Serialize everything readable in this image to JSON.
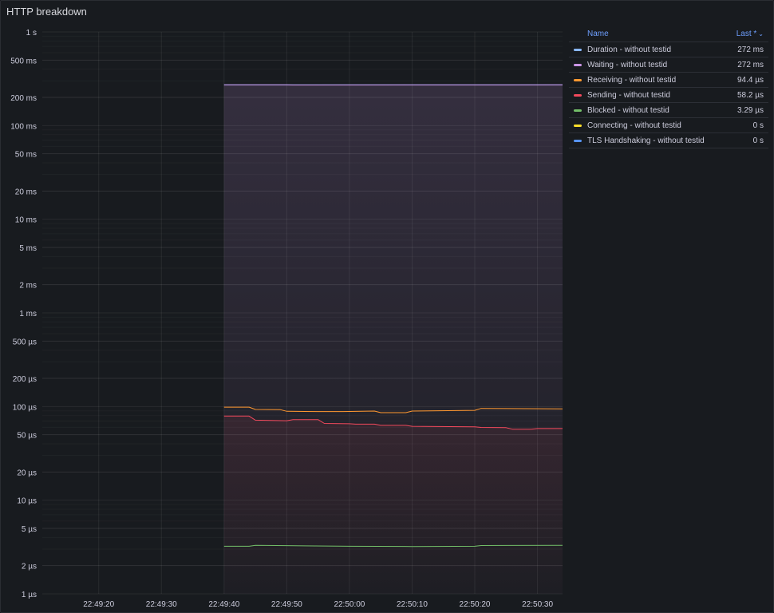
{
  "panel": {
    "title": "HTTP breakdown"
  },
  "legend": {
    "name_header": "Name",
    "last_header": "Last *",
    "sort_icon": "chevron-down-icon",
    "items": [
      {
        "name": "Duration - without testid",
        "value": "272 ms",
        "color": "#8ab8ff"
      },
      {
        "name": "Waiting - without testid",
        "value": "272 ms",
        "color": "#ca95e5"
      },
      {
        "name": "Receiving - without testid",
        "value": "94.4 µs",
        "color": "#ff9830"
      },
      {
        "name": "Sending - without testid",
        "value": "58.2 µs",
        "color": "#f2495c"
      },
      {
        "name": "Blocked - without testid",
        "value": "3.29 µs",
        "color": "#73bf69"
      },
      {
        "name": "Connecting - without testid",
        "value": "0 s",
        "color": "#fade2a"
      },
      {
        "name": "TLS Handshaking - without testid",
        "value": "0 s",
        "color": "#5794f2"
      }
    ]
  },
  "chart_data": {
    "type": "line",
    "title": "HTTP breakdown",
    "y_scale": "log",
    "y_unit": "seconds",
    "ylim": [
      1e-06,
      1
    ],
    "y_ticks": [
      {
        "value": 1,
        "label": "1 s"
      },
      {
        "value": 0.5,
        "label": "500 ms"
      },
      {
        "value": 0.2,
        "label": "200 ms"
      },
      {
        "value": 0.1,
        "label": "100 ms"
      },
      {
        "value": 0.05,
        "label": "50 ms"
      },
      {
        "value": 0.02,
        "label": "20 ms"
      },
      {
        "value": 0.01,
        "label": "10 ms"
      },
      {
        "value": 0.005,
        "label": "5 ms"
      },
      {
        "value": 0.002,
        "label": "2 ms"
      },
      {
        "value": 0.001,
        "label": "1 ms"
      },
      {
        "value": 0.0005,
        "label": "500 µs"
      },
      {
        "value": 0.0002,
        "label": "200 µs"
      },
      {
        "value": 0.0001,
        "label": "100 µs"
      },
      {
        "value": 5e-05,
        "label": "50 µs"
      },
      {
        "value": 2e-05,
        "label": "20 µs"
      },
      {
        "value": 1e-05,
        "label": "10 µs"
      },
      {
        "value": 5e-06,
        "label": "5 µs"
      },
      {
        "value": 2e-06,
        "label": "2 µs"
      },
      {
        "value": 1e-06,
        "label": "1 µs"
      }
    ],
    "xlim": [
      "22:49:11",
      "22:50:34"
    ],
    "x_ticks": [
      "22:49:20",
      "22:49:30",
      "22:49:40",
      "22:49:50",
      "22:50:00",
      "22:50:10",
      "22:50:20",
      "22:50:30"
    ],
    "series": [
      {
        "name": "Duration - without testid",
        "color": "#8ab8ff",
        "x": [
          "22:49:40",
          "22:50:34"
        ],
        "y": [
          0.272,
          0.272
        ]
      },
      {
        "name": "Waiting - without testid",
        "color": "#ca95e5",
        "x": [
          "22:49:40",
          "22:49:50",
          "22:49:51",
          "22:50:34"
        ],
        "y": [
          0.272,
          0.272,
          0.271,
          0.272
        ]
      },
      {
        "name": "Receiving - without testid",
        "color": "#ff9830",
        "x": [
          "22:49:40",
          "22:49:44",
          "22:49:45",
          "22:49:49",
          "22:49:50",
          "22:49:55",
          "22:49:59",
          "22:50:04",
          "22:50:05",
          "22:50:09",
          "22:50:10",
          "22:50:20",
          "22:50:21",
          "22:50:34"
        ],
        "y": [
          9.85e-05,
          9.85e-05,
          9.3e-05,
          9.25e-05,
          8.9e-05,
          8.85e-05,
          8.85e-05,
          8.95e-05,
          8.6e-05,
          8.6e-05,
          8.95e-05,
          9.1e-05,
          9.55e-05,
          9.44e-05
        ]
      },
      {
        "name": "Sending - without testid",
        "color": "#f2495c",
        "x": [
          "22:49:40",
          "22:49:44",
          "22:49:45",
          "22:49:50",
          "22:49:51",
          "22:49:55",
          "22:49:56",
          "22:50:00",
          "22:50:01",
          "22:50:04",
          "22:50:05",
          "22:50:09",
          "22:50:10",
          "22:50:20",
          "22:50:21",
          "22:50:25",
          "22:50:26",
          "22:50:29",
          "22:50:30",
          "22:50:34"
        ],
        "y": [
          7.9e-05,
          7.9e-05,
          7.15e-05,
          7.05e-05,
          7.25e-05,
          7.25e-05,
          6.6e-05,
          6.55e-05,
          6.48e-05,
          6.48e-05,
          6.3e-05,
          6.3e-05,
          6.15e-05,
          6.08e-05,
          5.98e-05,
          5.95e-05,
          5.73e-05,
          5.73e-05,
          5.82e-05,
          5.82e-05
        ]
      },
      {
        "name": "Blocked - without testid",
        "color": "#73bf69",
        "x": [
          "22:49:40",
          "22:49:44",
          "22:49:45",
          "22:49:50",
          "22:50:00",
          "22:50:10",
          "22:50:20",
          "22:50:21",
          "22:50:34"
        ],
        "y": [
          3.22e-06,
          3.22e-06,
          3.3e-06,
          3.27e-06,
          3.22e-06,
          3.2e-06,
          3.22e-06,
          3.28e-06,
          3.29e-06
        ]
      },
      {
        "name": "Connecting - without testid",
        "color": "#fade2a",
        "x": [
          "22:49:40",
          "22:50:34"
        ],
        "y": [
          0,
          0
        ]
      },
      {
        "name": "TLS Handshaking - without testid",
        "color": "#5794f2",
        "x": [
          "22:49:40",
          "22:50:34"
        ],
        "y": [
          0,
          0
        ]
      }
    ],
    "grid": true,
    "legend_position": "right"
  }
}
